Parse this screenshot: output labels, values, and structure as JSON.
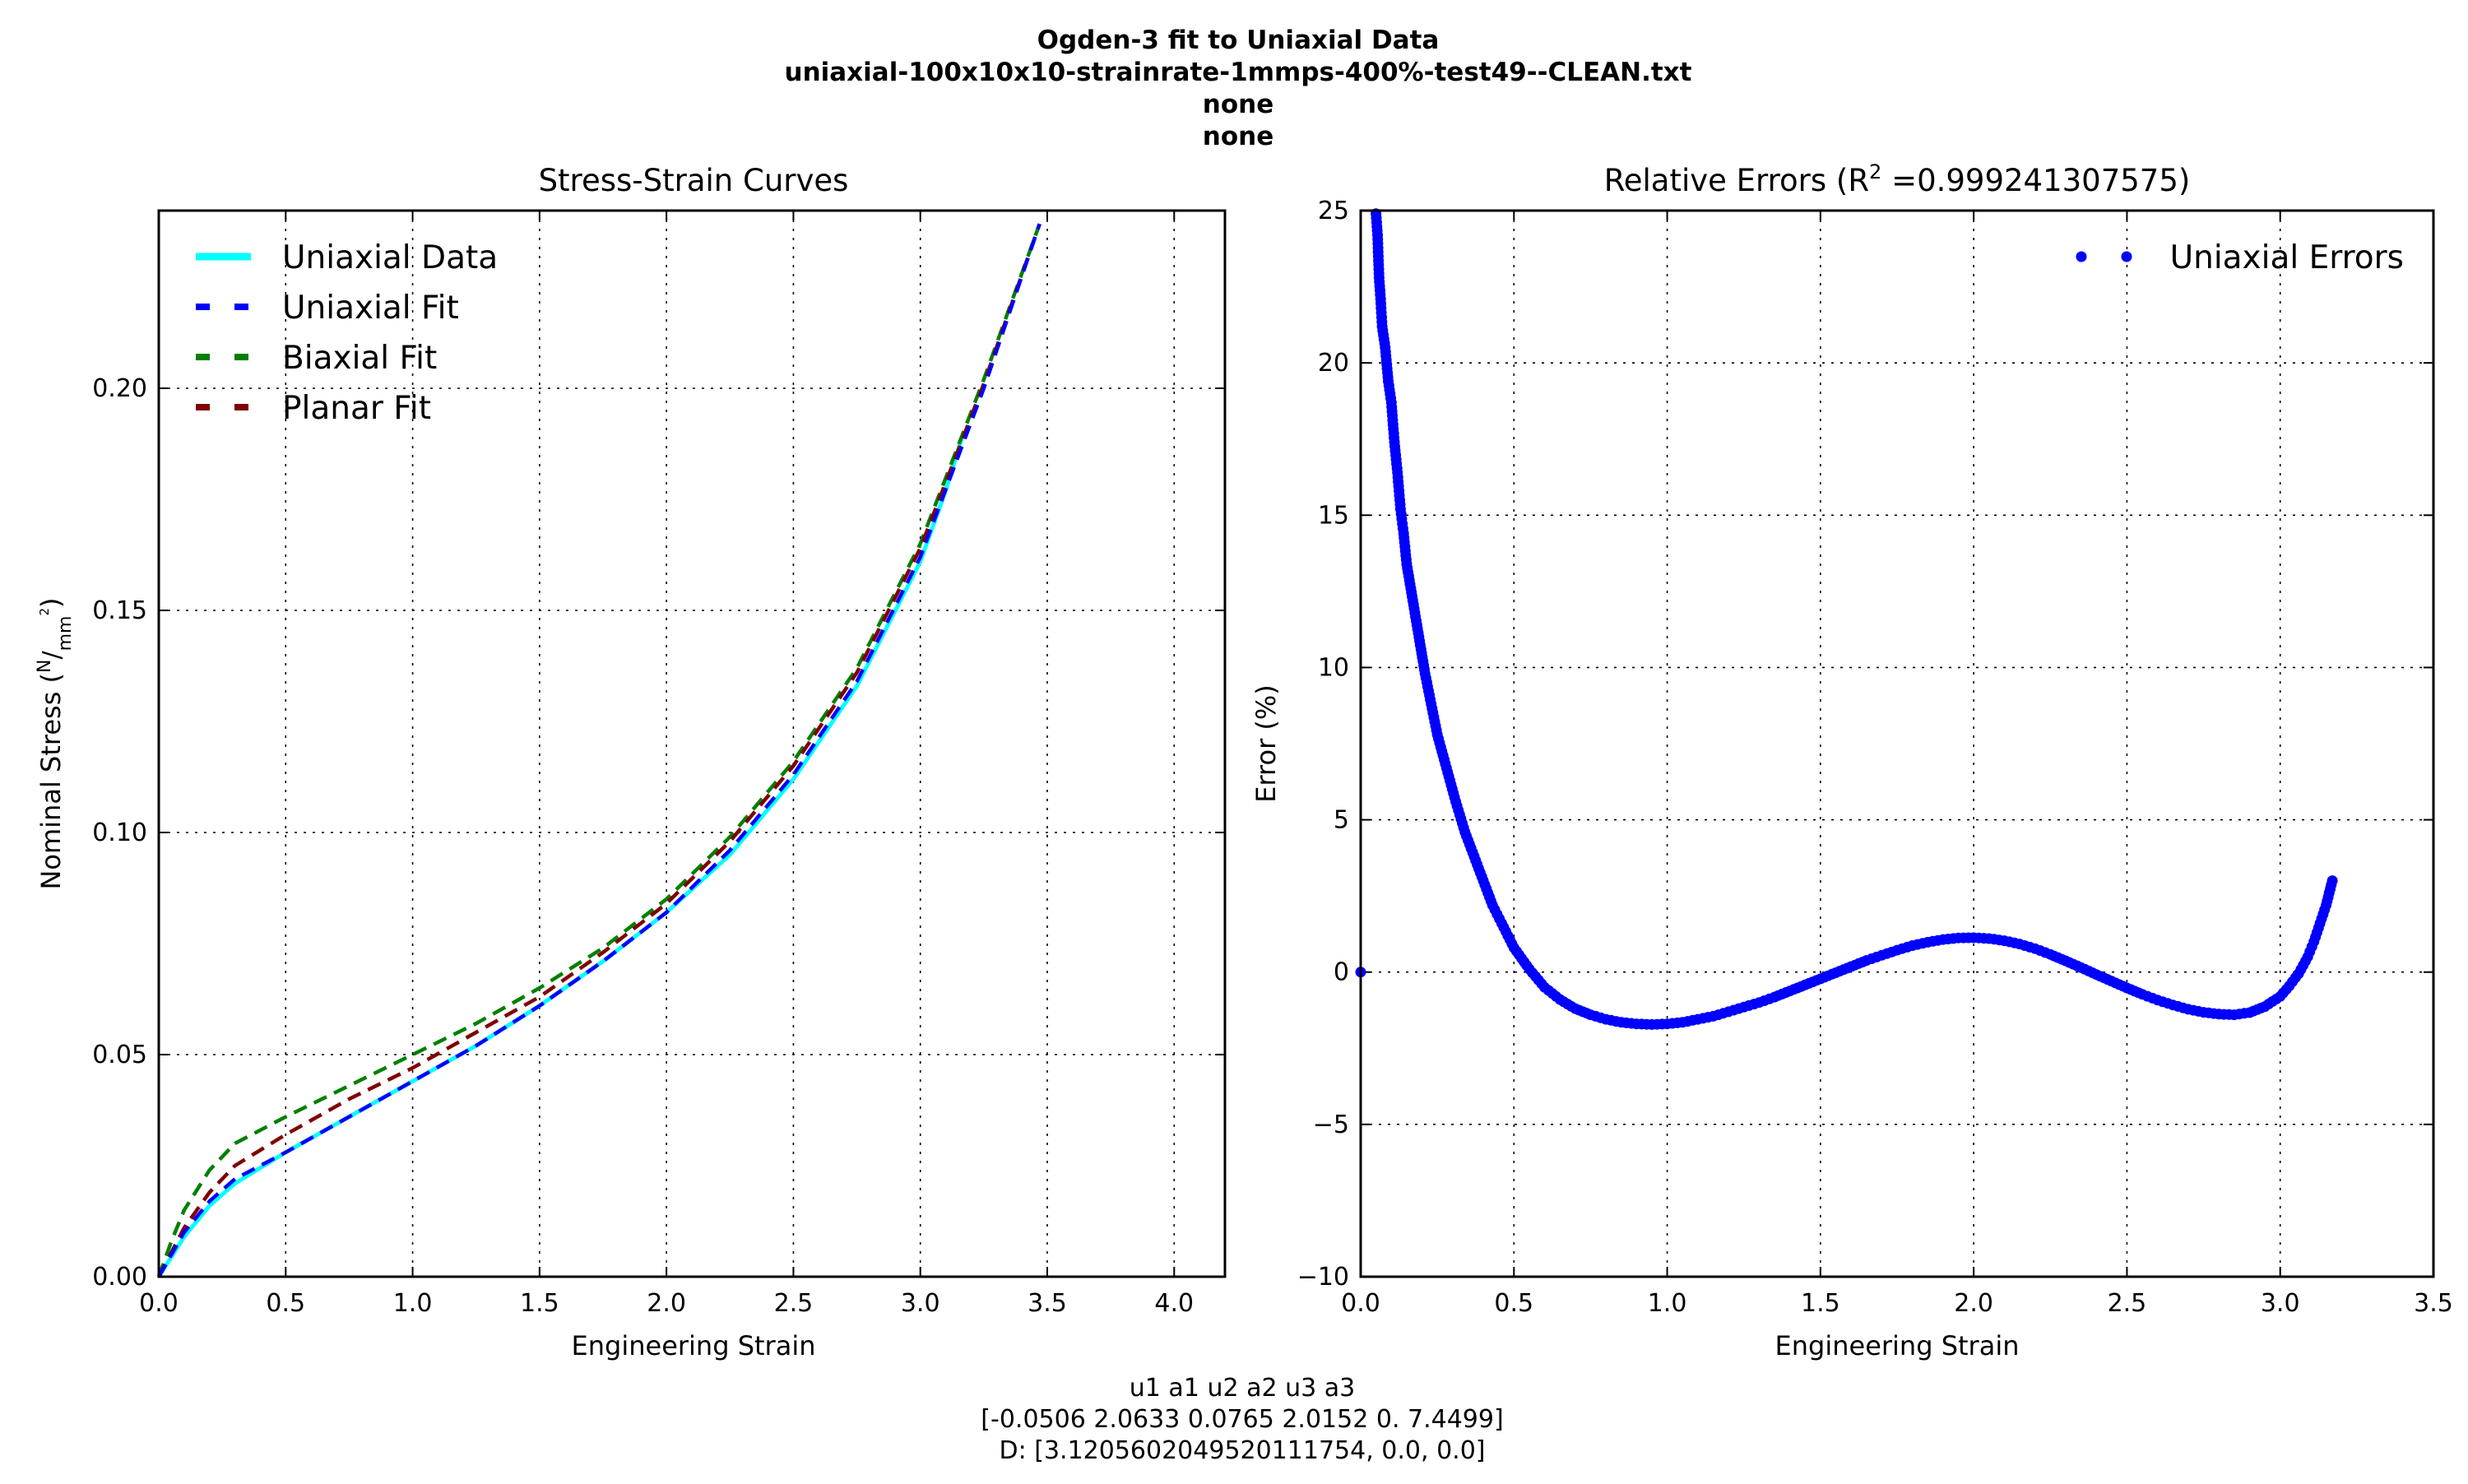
{
  "figure": {
    "suptitle": [
      "Ogden-3 fit to Uniaxial Data",
      "uniaxial-100x10x10-strainrate-1mmps-400%-test49--CLEAN.txt",
      "none",
      "none"
    ],
    "footer": [
      "u1 a1 u2 a2 u3 a3",
      "[-0.0506  2.0633  0.0765  2.0152  0.       7.4499]",
      "D: [3.1205602049520111754, 0.0, 0.0]"
    ]
  },
  "chart_data": [
    {
      "type": "line",
      "title": "Stress-Strain Curves",
      "xlabel": "Engineering Strain",
      "ylabel_main": "Nominal Stress (",
      "ylabel_unit_num": "N",
      "ylabel_unit_den": "mm",
      "ylabel_unit_exp": "2",
      "ylabel_close": ")",
      "xlim": [
        0,
        4.2
      ],
      "ylim": [
        0,
        0.24
      ],
      "xticks": [
        "0.0",
        "0.5",
        "1.0",
        "1.5",
        "2.0",
        "2.5",
        "3.0",
        "3.5",
        "4.0"
      ],
      "yticks": [
        "0.00",
        "0.05",
        "0.10",
        "0.15",
        "0.20"
      ],
      "grid": true,
      "legend_position": "upper-left",
      "series": [
        {
          "name": "Uniaxial Data",
          "color": "#00ffff",
          "style": "solid",
          "x": [
            0,
            0.1,
            0.2,
            0.3,
            0.5,
            0.75,
            1.0,
            1.25,
            1.5,
            1.75,
            2.0,
            2.25,
            2.5,
            2.75,
            3.0,
            3.1,
            3.17
          ],
          "y": [
            0,
            0.009,
            0.016,
            0.021,
            0.028,
            0.036,
            0.044,
            0.052,
            0.061,
            0.071,
            0.082,
            0.095,
            0.112,
            0.133,
            0.161,
            0.177,
            0.19
          ]
        },
        {
          "name": "Uniaxial Fit",
          "color": "#0000ff",
          "style": "dashed",
          "x": [
            0,
            0.1,
            0.2,
            0.3,
            0.5,
            0.75,
            1.0,
            1.25,
            1.5,
            1.75,
            2.0,
            2.25,
            2.5,
            2.75,
            3.0,
            3.25,
            3.47
          ],
          "y": [
            0,
            0.01,
            0.017,
            0.022,
            0.028,
            0.036,
            0.044,
            0.052,
            0.061,
            0.071,
            0.082,
            0.096,
            0.113,
            0.134,
            0.162,
            0.2,
            0.237
          ]
        },
        {
          "name": "Biaxial Fit",
          "color": "#008000",
          "style": "dashed",
          "x": [
            0,
            0.05,
            0.1,
            0.2,
            0.3,
            0.5,
            0.75,
            1.0,
            1.25,
            1.5,
            1.75,
            2.0,
            2.25,
            2.5,
            2.75,
            3.0,
            3.25,
            3.47
          ],
          "y": [
            0,
            0.008,
            0.015,
            0.024,
            0.03,
            0.036,
            0.043,
            0.05,
            0.057,
            0.065,
            0.074,
            0.085,
            0.099,
            0.116,
            0.137,
            0.165,
            0.202,
            0.237
          ]
        },
        {
          "name": "Planar Fit",
          "color": "#800000",
          "style": "dashed",
          "x": [
            0,
            0.1,
            0.2,
            0.3,
            0.5,
            0.75,
            1.0,
            1.25,
            1.5,
            1.75,
            2.0,
            2.25,
            2.5,
            2.75,
            3.0,
            3.25,
            3.47
          ],
          "y": [
            0,
            0.011,
            0.019,
            0.025,
            0.032,
            0.04,
            0.047,
            0.055,
            0.063,
            0.073,
            0.084,
            0.098,
            0.115,
            0.136,
            0.164,
            0.201,
            0.237
          ]
        }
      ]
    },
    {
      "type": "scatter",
      "title_main": "Relative Errors (R",
      "title_sup": "2",
      "title_rest": " =0.999241307575)",
      "xlabel": "Engineering Strain",
      "ylabel": "Error (%)",
      "xlim": [
        0,
        3.5
      ],
      "ylim": [
        -10,
        25
      ],
      "xticks": [
        "0.0",
        "0.5",
        "1.0",
        "1.5",
        "2.0",
        "2.5",
        "3.0",
        "3.5"
      ],
      "yticks": [
        "−10",
        "−5",
        "0",
        "5",
        "10",
        "15",
        "20",
        "25"
      ],
      "grid": true,
      "legend_position": "upper-right",
      "series": [
        {
          "name": "Uniaxial Errors",
          "color": "#0000ff",
          "x": [
            0.0,
            0.05,
            0.055,
            0.06,
            0.065,
            0.07,
            0.08,
            0.09,
            0.1,
            0.11,
            0.12,
            0.13,
            0.14,
            0.15,
            0.17,
            0.19,
            0.21,
            0.23,
            0.25,
            0.28,
            0.31,
            0.34,
            0.37,
            0.4,
            0.43,
            0.46,
            0.5,
            0.55,
            0.6,
            0.65,
            0.7,
            0.75,
            0.8,
            0.85,
            0.9,
            0.95,
            1.0,
            1.05,
            1.1,
            1.15,
            1.2,
            1.25,
            1.3,
            1.35,
            1.4,
            1.45,
            1.5,
            1.55,
            1.6,
            1.65,
            1.7,
            1.75,
            1.8,
            1.85,
            1.9,
            1.95,
            2.0,
            2.05,
            2.1,
            2.15,
            2.2,
            2.25,
            2.3,
            2.35,
            2.4,
            2.45,
            2.5,
            2.55,
            2.6,
            2.65,
            2.7,
            2.75,
            2.8,
            2.85,
            2.9,
            2.95,
            3.0,
            3.03,
            3.06,
            3.09,
            3.11,
            3.13,
            3.15,
            3.17
          ],
          "y": [
            0.0,
            24.9,
            24.2,
            22.8,
            22.1,
            21.2,
            20.5,
            19.4,
            18.7,
            17.4,
            16.4,
            15.2,
            14.4,
            13.4,
            12.2,
            11.0,
            9.8,
            8.8,
            7.8,
            6.7,
            5.6,
            4.6,
            3.8,
            3.0,
            2.2,
            1.6,
            0.8,
            0.1,
            -0.5,
            -0.9,
            -1.2,
            -1.4,
            -1.55,
            -1.65,
            -1.7,
            -1.72,
            -1.7,
            -1.65,
            -1.55,
            -1.45,
            -1.3,
            -1.15,
            -1.0,
            -0.82,
            -0.62,
            -0.42,
            -0.22,
            -0.02,
            0.18,
            0.38,
            0.55,
            0.72,
            0.87,
            0.98,
            1.07,
            1.12,
            1.13,
            1.1,
            1.03,
            0.92,
            0.77,
            0.58,
            0.37,
            0.15,
            -0.08,
            -0.3,
            -0.52,
            -0.73,
            -0.92,
            -1.08,
            -1.22,
            -1.32,
            -1.38,
            -1.4,
            -1.33,
            -1.13,
            -0.8,
            -0.45,
            -0.05,
            0.5,
            1.0,
            1.6,
            2.2,
            3.0
          ]
        }
      ]
    }
  ]
}
